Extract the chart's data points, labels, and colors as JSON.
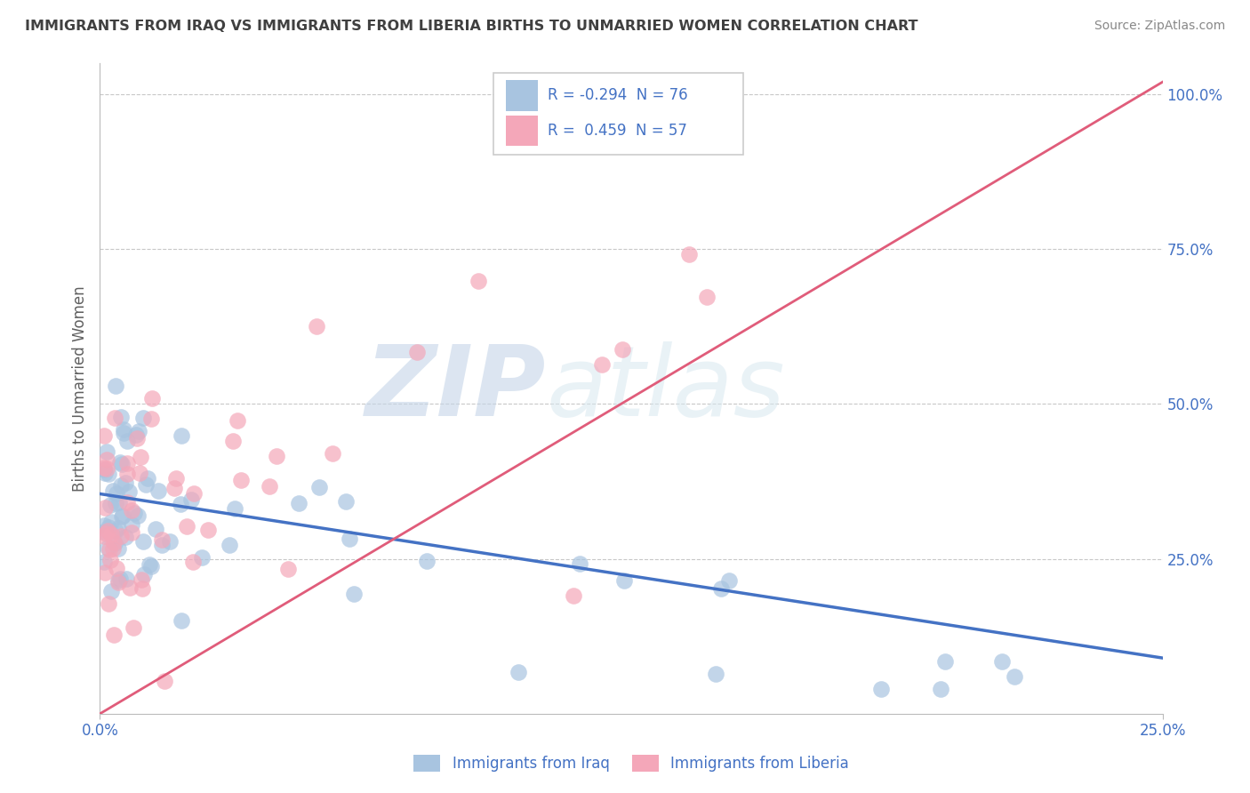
{
  "title": "IMMIGRANTS FROM IRAQ VS IMMIGRANTS FROM LIBERIA BIRTHS TO UNMARRIED WOMEN CORRELATION CHART",
  "source": "Source: ZipAtlas.com",
  "ylabel": "Births to Unmarried Women",
  "watermark_zip": "ZIP",
  "watermark_atlas": "atlas",
  "x_min": 0.0,
  "x_max": 0.25,
  "y_min": 0.0,
  "y_max": 1.05,
  "x_tick_vals": [
    0.0,
    0.25
  ],
  "x_tick_labels": [
    "0.0%",
    "25.0%"
  ],
  "y_ticks_right": [
    0.25,
    0.5,
    0.75,
    1.0
  ],
  "y_tick_labels_right": [
    "25.0%",
    "50.0%",
    "75.0%",
    "100.0%"
  ],
  "legend_r_iraq": "-0.294",
  "legend_n_iraq": "76",
  "legend_r_liberia": "0.459",
  "legend_n_liberia": "57",
  "iraq_color": "#a8c4e0",
  "liberia_color": "#f4a7b9",
  "iraq_line_color": "#4472c4",
  "liberia_line_color": "#e05c7a",
  "background_color": "#ffffff",
  "grid_color": "#c8c8c8",
  "title_color": "#404040",
  "axis_label_color": "#4472c4",
  "legend_text_color": "#4472c4"
}
